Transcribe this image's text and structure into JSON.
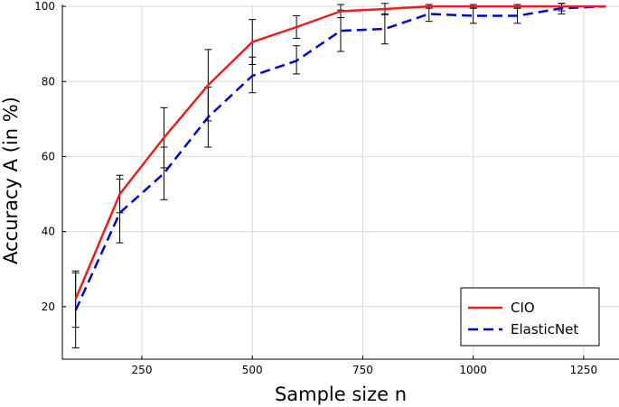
{
  "chart_data": {
    "type": "line",
    "xlabel": "Sample size n",
    "ylabel": "Accuracy A (in %)",
    "xlim": [
      70,
      1330
    ],
    "ylim": [
      6,
      100.5
    ],
    "xticks": [
      250,
      500,
      750,
      1000,
      1250
    ],
    "yticks": [
      20,
      40,
      60,
      80,
      100
    ],
    "grid": true,
    "legend_position": "bottom-right",
    "x": [
      100,
      200,
      300,
      400,
      500,
      600,
      700,
      800,
      900,
      1000,
      1100,
      1200,
      1300
    ],
    "series": [
      {
        "name": "CIO",
        "color": "#ee1c1c",
        "dash": "solid",
        "values": [
          22.0,
          50.0,
          65.0,
          79.0,
          90.5,
          94.5,
          98.7,
          99.3,
          100.0,
          100.0,
          100.0,
          100.0,
          100.0
        ],
        "error_low": [
          14.5,
          45.0,
          57.0,
          69.5,
          84.5,
          91.5,
          97.0,
          97.8,
          99.5,
          99.5,
          99.5,
          98.8,
          100.0
        ],
        "error_high": [
          29.0,
          55.0,
          73.0,
          88.5,
          96.5,
          97.5,
          100.5,
          100.8,
          100.5,
          100.5,
          100.5,
          100.8,
          100.0
        ]
      },
      {
        "name": "ElasticNet",
        "color": "#0000cc",
        "dash": "dashed",
        "values": [
          19.0,
          45.0,
          55.5,
          70.5,
          81.5,
          85.5,
          93.5,
          94.0,
          98.0,
          97.5,
          97.5,
          99.5,
          100.0
        ],
        "error_low": [
          9.0,
          37.0,
          48.5,
          62.5,
          77.0,
          82.0,
          88.0,
          90.0,
          96.0,
          95.5,
          95.5,
          98.0,
          100.0
        ],
        "error_high": [
          29.5,
          54.0,
          62.5,
          78.5,
          86.5,
          89.5,
          99.0,
          98.0,
          100.0,
          99.5,
          99.5,
          100.8,
          100.0
        ]
      }
    ]
  }
}
